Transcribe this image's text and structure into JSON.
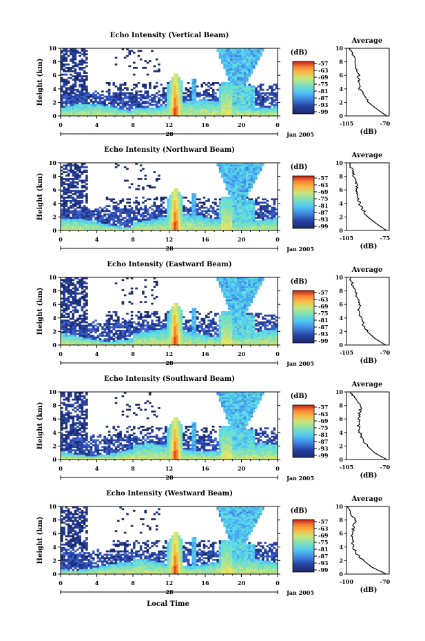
{
  "colors": {
    "scale": [
      "#1a2a6b",
      "#2640a0",
      "#3a5fc8",
      "#3f85e0",
      "#49a8ef",
      "#52c8f2",
      "#62dede",
      "#7fe0b8",
      "#a4e39a",
      "#c9e57a",
      "#f0e35a",
      "#fbb743",
      "#f77f34",
      "#e84526",
      "#c01a14"
    ],
    "axes": "#000000",
    "background": "#ffffff"
  },
  "shared": {
    "height_ticks": [
      "0",
      "2",
      "4",
      "6",
      "8",
      "10"
    ],
    "time_ticks": [
      "0",
      "4",
      "8",
      "12",
      "16",
      "20",
      "0"
    ],
    "day_label": "28",
    "month_label": "Jan 2005",
    "ylabel": "Height (km)",
    "colorbar_unit": "(dB)",
    "colorbar_ticks": [
      "-57",
      "-63",
      "-69",
      "-75",
      "-81",
      "-87",
      "-93",
      "-99"
    ],
    "average_title": "Average",
    "average_xlabel": "(dB)",
    "xlabel": "Local Time"
  },
  "chart_data": [
    {
      "type": "heatmap",
      "title": "Echo Intensity (Vertical Beam)",
      "ylabel": "Height (km)",
      "ylim": [
        0,
        10
      ],
      "xlim": [
        0,
        24
      ],
      "colorbar_range": [
        -99,
        -57
      ],
      "avg_ticks": [
        "-105",
        "-70"
      ],
      "average_profile": {
        "title": "Average",
        "xlabel": "(dB)",
        "xlim": [
          -105,
          -70
        ],
        "height": [
          0,
          1,
          2,
          3,
          4,
          5,
          6,
          7,
          8,
          9,
          10
        ],
        "value": [
          -72,
          -80,
          -87,
          -90,
          -94,
          -95,
          -95,
          -97,
          -98,
          -100,
          -102
        ]
      }
    },
    {
      "type": "heatmap",
      "title": "Echo Intensity (Northward Beam)",
      "ylabel": "Height (km)",
      "ylim": [
        0,
        10
      ],
      "xlim": [
        0,
        24
      ],
      "colorbar_range": [
        -99,
        -57
      ],
      "avg_ticks": [
        "-105",
        "-75"
      ],
      "average_profile": {
        "title": "Average",
        "xlabel": "(dB)",
        "xlim": [
          -105,
          -75
        ],
        "height": [
          0,
          1,
          2,
          3,
          4,
          5,
          6,
          7,
          8,
          9,
          10
        ],
        "value": [
          -77,
          -84,
          -90,
          -93,
          -96,
          -97,
          -98,
          -98,
          -100,
          -101,
          -103
        ]
      }
    },
    {
      "type": "heatmap",
      "title": "Echo Intensity (Eastward Beam)",
      "ylabel": "Height (km)",
      "ylim": [
        0,
        10
      ],
      "xlim": [
        0,
        24
      ],
      "colorbar_range": [
        -99,
        -57
      ],
      "avg_ticks": [
        "-105",
        "-70"
      ],
      "average_profile": {
        "title": "Average",
        "xlabel": "(dB)",
        "xlim": [
          -105,
          -70
        ],
        "height": [
          0,
          1,
          2,
          3,
          4,
          5,
          6,
          7,
          8,
          9,
          10
        ],
        "value": [
          -73,
          -82,
          -88,
          -91,
          -93,
          -95,
          -94,
          -96,
          -98,
          -100,
          -102
        ]
      }
    },
    {
      "type": "heatmap",
      "title": "Echo Intensity (Southward Beam)",
      "ylabel": "Height (km)",
      "ylim": [
        0,
        10
      ],
      "xlim": [
        0,
        24
      ],
      "colorbar_range": [
        -99,
        -57
      ],
      "avg_ticks": [
        "-105",
        "-70"
      ],
      "average_profile": {
        "title": "Average",
        "xlabel": "(dB)",
        "xlim": [
          -105,
          -70
        ],
        "height": [
          0,
          1,
          2,
          3,
          4,
          5,
          6,
          7,
          8,
          9,
          10
        ],
        "value": [
          -72,
          -82,
          -88,
          -92,
          -94,
          -95,
          -95,
          -94,
          -93,
          -98,
          -102
        ]
      }
    },
    {
      "type": "heatmap",
      "title": "Echo Intensity (Westward Beam)",
      "ylabel": "Height (km)",
      "ylim": [
        0,
        10
      ],
      "xlim": [
        0,
        24
      ],
      "colorbar_range": [
        -99,
        -57
      ],
      "avg_ticks": [
        "-100",
        "-70"
      ],
      "average_profile": {
        "title": "Average",
        "xlabel": "(dB)",
        "xlim": [
          -100,
          -70
        ],
        "height": [
          0,
          1,
          2,
          3,
          4,
          5,
          6,
          7,
          8,
          9,
          10
        ],
        "value": [
          -72,
          -82,
          -88,
          -93,
          -95,
          -96,
          -96,
          -95,
          -94,
          -97,
          -100
        ]
      }
    }
  ]
}
